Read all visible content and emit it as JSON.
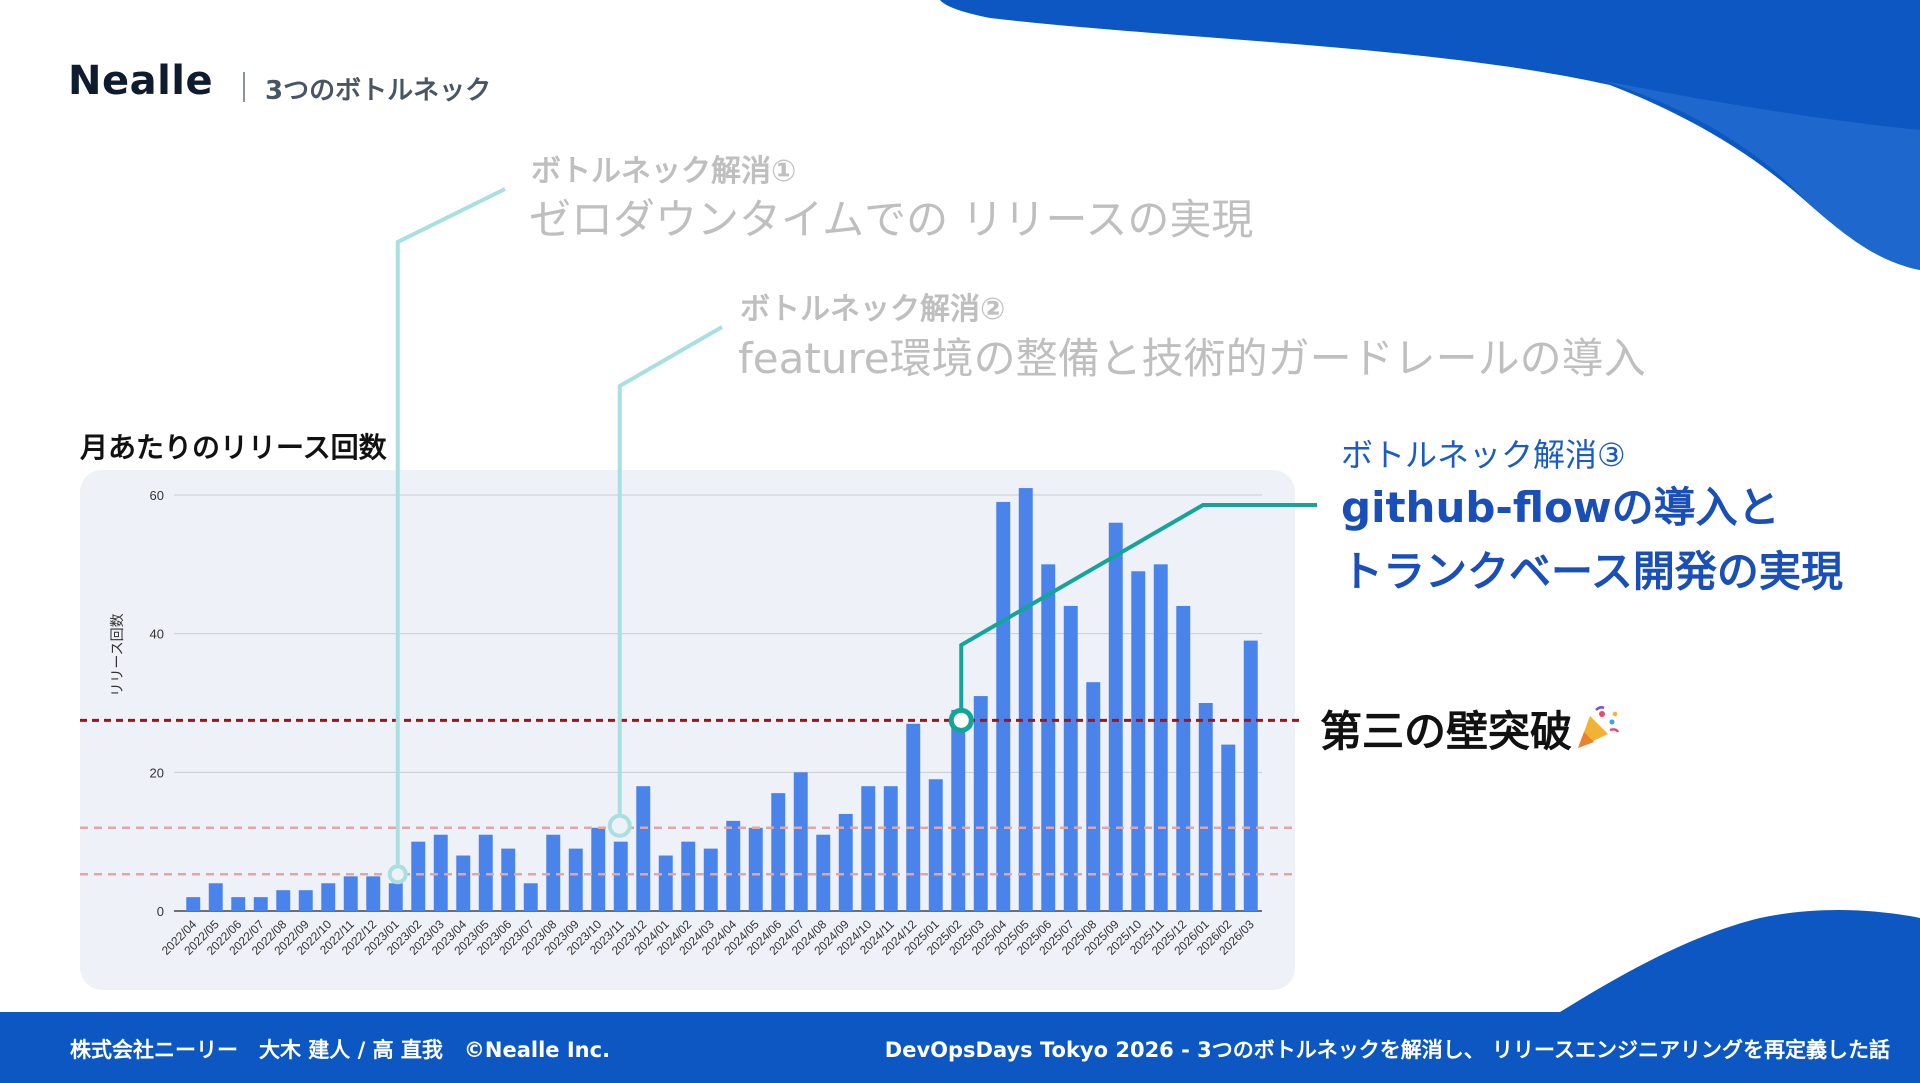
{
  "header": {
    "logo": "Nealle",
    "section": "3つのボトルネック"
  },
  "bottleneck1": {
    "head": "ボトルネック解消①",
    "body": "ゼロダウンタイムでの リリースの実現"
  },
  "bottleneck2": {
    "head": "ボトルネック解消②",
    "body": "feature環境の整備と技術的ガードレールの導入"
  },
  "bottleneck3": {
    "head": "ボトルネック解消③",
    "body_line1": "github-flowの導入と",
    "body_line2": "トランクベース開発の実現"
  },
  "wall": {
    "text": "第三の壁突破",
    "icon": "party-popper-icon"
  },
  "footer": {
    "left": "株式会社ニーリー　大木 建人 / 高 直我　©Nealle Inc.",
    "right": "DevOpsDays Tokyo 2026 -  3つのボトルネックを解消し、 リリースエンジニアリングを再定義した話"
  },
  "colors": {
    "bar": "#4a84ea",
    "threshold_major": "#a31515",
    "threshold_minor": "#e3a6a6",
    "marker_light": "#a8dfe0",
    "marker_teal": "#13a59a",
    "footer": "#0c57c2"
  },
  "chart_data": {
    "type": "bar",
    "title": "月あたりのリリース回数",
    "ylabel": "リリース回数",
    "xlabel": "",
    "ylim": [
      0,
      60
    ],
    "yticks": [
      0,
      20,
      40,
      60
    ],
    "grid": true,
    "categories": [
      "2022/04",
      "2022/05",
      "2022/06",
      "2022/07",
      "2022/08",
      "2022/09",
      "2022/10",
      "2022/11",
      "2022/12",
      "2023/01",
      "2023/02",
      "2023/03",
      "2023/04",
      "2023/05",
      "2023/06",
      "2023/07",
      "2023/08",
      "2023/09",
      "2023/10",
      "2023/11",
      "2023/12",
      "2024/01",
      "2024/02",
      "2024/03",
      "2024/04",
      "2024/05",
      "2024/06",
      "2024/07",
      "2024/08",
      "2024/09",
      "2024/10",
      "2024/11",
      "2024/12",
      "2025/01",
      "2025/02",
      "2025/03",
      "2025/04",
      "2025/05",
      "2025/06",
      "2025/07",
      "2025/08",
      "2025/09",
      "2025/10",
      "2025/11",
      "2025/12",
      "2026/01",
      "2026/02",
      "2026/03"
    ],
    "values": [
      2,
      4,
      2,
      2,
      3,
      3,
      4,
      5,
      5,
      4,
      10,
      11,
      8,
      11,
      9,
      4,
      11,
      9,
      12,
      10,
      18,
      8,
      10,
      9,
      13,
      12,
      17,
      20,
      11,
      14,
      18,
      18,
      27,
      19,
      29,
      31,
      59,
      61,
      50,
      44,
      33,
      56,
      49,
      50,
      44,
      30,
      24,
      39
    ],
    "thresholds": [
      {
        "value": 5.3,
        "style": "minor"
      },
      {
        "value": 12,
        "style": "minor"
      },
      {
        "value": 27.5,
        "style": "major"
      }
    ],
    "markers": [
      {
        "x": "2023/01",
        "y": 5.3,
        "label": "ボトルネック解消①"
      },
      {
        "x": "2023/11",
        "y": 12,
        "label": "ボトルネック解消②"
      },
      {
        "x": "2025/02",
        "y": 27.5,
        "label": "ボトルネック解消③"
      }
    ]
  }
}
